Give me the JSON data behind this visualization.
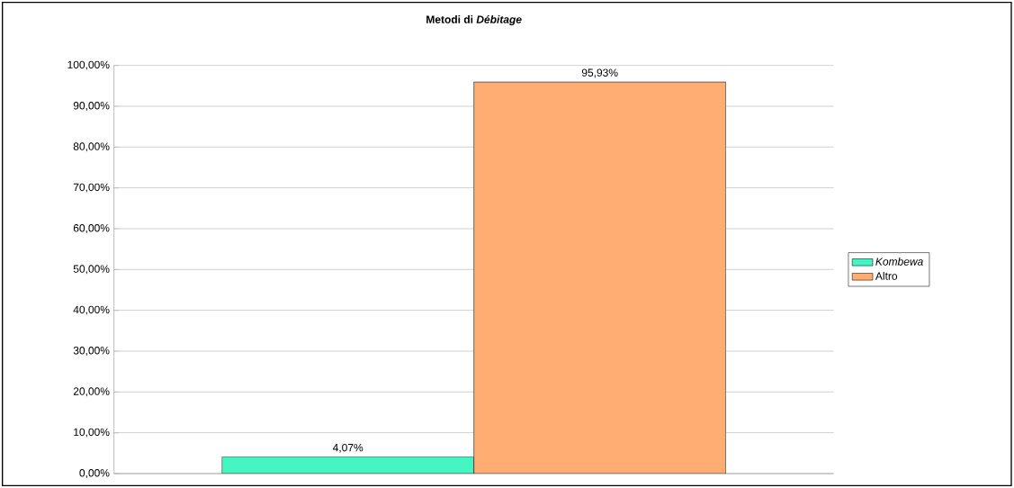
{
  "chart_data": {
    "type": "bar",
    "title": "Metodi di *Débitage*",
    "categories": [
      null
    ],
    "series": [
      {
        "name": "Kombewa",
        "color": "#44f5c2",
        "values": [
          4.07
        ],
        "value_labels": [
          "4,07%"
        ]
      },
      {
        "name": "Altro",
        "color": "#ffad73",
        "values": [
          95.93
        ],
        "value_labels": [
          "95,93%"
        ]
      }
    ],
    "ylim": [
      0,
      100
    ],
    "yticks": [
      {
        "value": 0,
        "label": "0,00%"
      },
      {
        "value": 10,
        "label": "10,00%"
      },
      {
        "value": 20,
        "label": "20,00%"
      },
      {
        "value": 30,
        "label": "30,00%"
      },
      {
        "value": 40,
        "label": "40,00%"
      },
      {
        "value": 50,
        "label": "50,00%"
      },
      {
        "value": 60,
        "label": "60,00%"
      },
      {
        "value": 70,
        "label": "70,00%"
      },
      {
        "value": 80,
        "label": "80,00%"
      },
      {
        "value": 90,
        "label": "90,00%"
      },
      {
        "value": 100,
        "label": "100,00%"
      }
    ],
    "grid": "y",
    "legend": "right"
  }
}
